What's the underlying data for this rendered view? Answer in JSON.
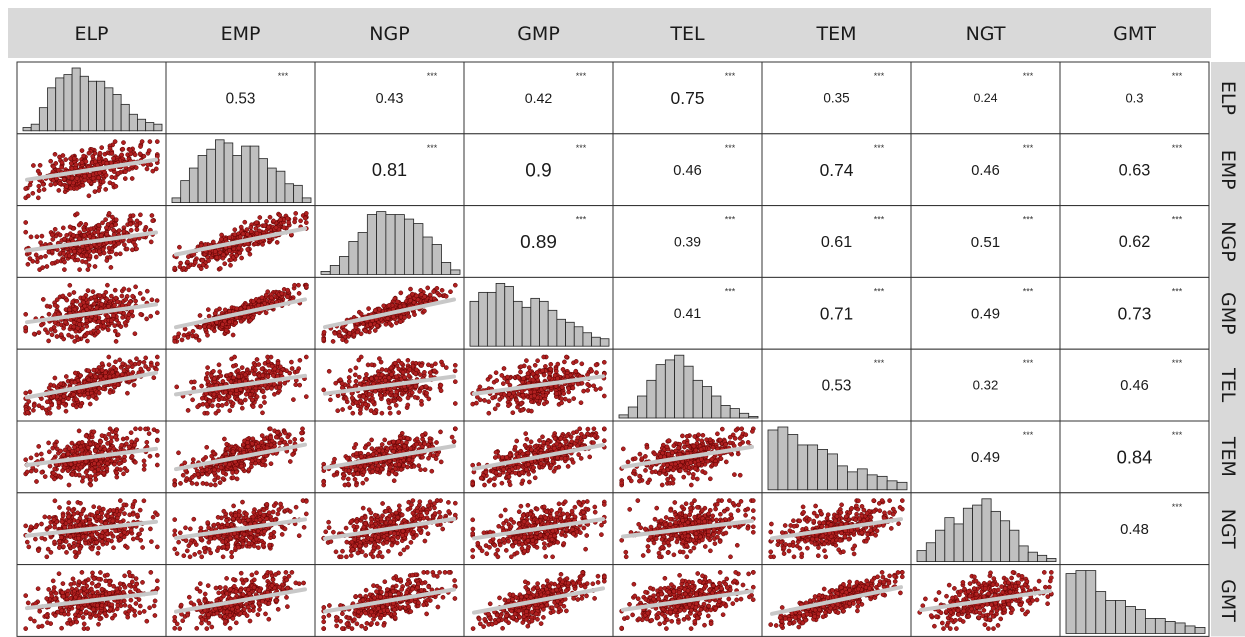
{
  "chart_data": {
    "type": "scatter-matrix",
    "variables": [
      "ELP",
      "EMP",
      "NGP",
      "GMP",
      "TEL",
      "TEM",
      "NGT",
      "GMT"
    ],
    "significance_marker": "***",
    "correlations": [
      {
        "row": "ELP",
        "col": "EMP",
        "r": 0.53
      },
      {
        "row": "ELP",
        "col": "NGP",
        "r": 0.43
      },
      {
        "row": "ELP",
        "col": "GMP",
        "r": 0.42
      },
      {
        "row": "ELP",
        "col": "TEL",
        "r": 0.75
      },
      {
        "row": "ELP",
        "col": "TEM",
        "r": 0.35
      },
      {
        "row": "ELP",
        "col": "NGT",
        "r": 0.24
      },
      {
        "row": "ELP",
        "col": "GMT",
        "r": 0.3
      },
      {
        "row": "EMP",
        "col": "NGP",
        "r": 0.81
      },
      {
        "row": "EMP",
        "col": "GMP",
        "r": 0.9
      },
      {
        "row": "EMP",
        "col": "TEL",
        "r": 0.46
      },
      {
        "row": "EMP",
        "col": "TEM",
        "r": 0.74
      },
      {
        "row": "EMP",
        "col": "NGT",
        "r": 0.46
      },
      {
        "row": "EMP",
        "col": "GMT",
        "r": 0.63
      },
      {
        "row": "NGP",
        "col": "GMP",
        "r": 0.89
      },
      {
        "row": "NGP",
        "col": "TEL",
        "r": 0.39
      },
      {
        "row": "NGP",
        "col": "TEM",
        "r": 0.61
      },
      {
        "row": "NGP",
        "col": "NGT",
        "r": 0.51
      },
      {
        "row": "NGP",
        "col": "GMT",
        "r": 0.62
      },
      {
        "row": "GMP",
        "col": "TEL",
        "r": 0.41
      },
      {
        "row": "GMP",
        "col": "TEM",
        "r": 0.71
      },
      {
        "row": "GMP",
        "col": "NGT",
        "r": 0.49
      },
      {
        "row": "GMP",
        "col": "GMT",
        "r": 0.73
      },
      {
        "row": "TEL",
        "col": "TEM",
        "r": 0.53
      },
      {
        "row": "TEL",
        "col": "NGT",
        "r": 0.32
      },
      {
        "row": "TEL",
        "col": "GMT",
        "r": 0.46
      },
      {
        "row": "TEM",
        "col": "NGT",
        "r": 0.49
      },
      {
        "row": "TEM",
        "col": "GMT",
        "r": 0.84
      },
      {
        "row": "NGT",
        "col": "GMT",
        "r": 0.48
      }
    ],
    "histograms": {
      "ELP": [
        2,
        4,
        14,
        26,
        32,
        34,
        38,
        33,
        30,
        30,
        26,
        22,
        16,
        10,
        7,
        5,
        4
      ],
      "EMP": [
        3,
        14,
        22,
        30,
        34,
        40,
        38,
        30,
        36,
        36,
        28,
        22,
        20,
        12,
        11,
        3
      ],
      "NGP": [
        2,
        6,
        12,
        22,
        28,
        40,
        42,
        40,
        40,
        37,
        34,
        25,
        20,
        8,
        3
      ],
      "GMP": [
        30,
        36,
        36,
        42,
        40,
        30,
        26,
        32,
        30,
        24,
        18,
        16,
        13,
        9,
        6,
        5
      ],
      "TEL": [
        2,
        7,
        14,
        24,
        34,
        37,
        40,
        33,
        24,
        20,
        14,
        8,
        6,
        3,
        1
      ],
      "TEM": [
        40,
        42,
        37,
        30,
        30,
        27,
        24,
        16,
        12,
        14,
        10,
        9,
        6,
        5
      ],
      "NGT": [
        7,
        12,
        20,
        28,
        24,
        34,
        36,
        40,
        32,
        26,
        20,
        10,
        6,
        4,
        2
      ],
      "GMT": [
        40,
        42,
        42,
        28,
        22,
        22,
        18,
        16,
        10,
        10,
        8,
        7,
        5,
        4
      ]
    }
  }
}
